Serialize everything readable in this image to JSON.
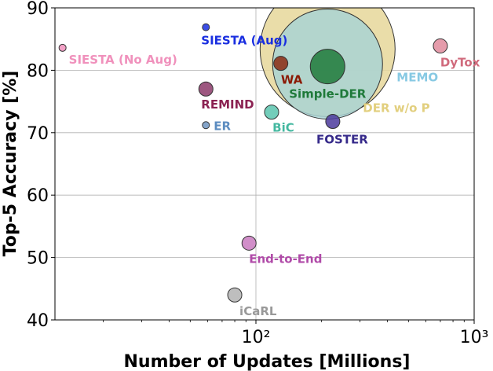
{
  "chart_data": {
    "type": "scatter",
    "title": "",
    "xlabel": "Number of Updates [Millions]",
    "ylabel": "Top-5 Accuracy [%]",
    "xscale": "log",
    "xlim": [
      12,
      1000
    ],
    "ylim": [
      40,
      90
    ],
    "grid": true,
    "x_ticks": [
      {
        "value": 100,
        "label": "10²"
      },
      {
        "value": 1000,
        "label": "10³"
      }
    ],
    "y_ticks": [
      40,
      50,
      60,
      70,
      80,
      90
    ],
    "points": [
      {
        "name": "DER w/o P",
        "x": 213,
        "y": 83.4,
        "size": "very-large",
        "color": "#E6D79A",
        "label_color": "#E2CF7E"
      },
      {
        "name": "MEMO",
        "x": 213,
        "y": 81.0,
        "size": "large",
        "color": "#A9D4D4",
        "label_color": "#87C9E3"
      },
      {
        "name": "Simple-DER",
        "x": 213,
        "y": 80.6,
        "size": "medium",
        "color": "#1F7A3A",
        "label_color": "#1F7A3A"
      },
      {
        "name": "WA",
        "x": 130,
        "y": 81.1,
        "size": "small",
        "color": "#8B2A10",
        "label_color": "#8B1A05"
      },
      {
        "name": "SIESTA (Aug)",
        "x": 59,
        "y": 86.9,
        "size": "tiny",
        "color": "#1A2FE0",
        "label_color": "#1A2FE0"
      },
      {
        "name": "SIESTA (No Aug)",
        "x": 13,
        "y": 83.6,
        "size": "tiny",
        "color": "#F091BC",
        "label_color": "#F091BC"
      },
      {
        "name": "REMIND",
        "x": 59,
        "y": 77.0,
        "size": "small",
        "color": "#8C3A6A",
        "label_color": "#8B2252"
      },
      {
        "name": "ER",
        "x": 59,
        "y": 71.2,
        "size": "tiny",
        "color": "#6E94C0",
        "label_color": "#5C8CC0"
      },
      {
        "name": "BiC",
        "x": 118,
        "y": 73.3,
        "size": "small",
        "color": "#5BC4AE",
        "label_color": "#44B8A0"
      },
      {
        "name": "FOSTER",
        "x": 225,
        "y": 71.8,
        "size": "small",
        "color": "#4B3A9C",
        "label_color": "#362A8A"
      },
      {
        "name": "DyTox",
        "x": 700,
        "y": 83.9,
        "size": "small",
        "color": "#E08B9C",
        "label_color": "#D06A7C"
      },
      {
        "name": "End-to-End",
        "x": 93,
        "y": 52.3,
        "size": "small",
        "color": "#C97ABF",
        "label_color": "#B04AA8"
      },
      {
        "name": "iCaRL",
        "x": 80,
        "y": 44.0,
        "size": "small",
        "color": "#B3B3B3",
        "label_color": "#999999"
      }
    ]
  }
}
